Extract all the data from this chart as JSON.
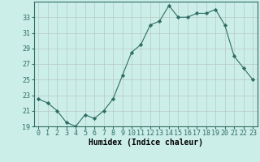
{
  "x": [
    0,
    1,
    2,
    3,
    4,
    5,
    6,
    7,
    8,
    9,
    10,
    11,
    12,
    13,
    14,
    15,
    16,
    17,
    18,
    19,
    20,
    21,
    22,
    23
  ],
  "y": [
    22.5,
    22.0,
    21.0,
    19.5,
    19.0,
    20.5,
    20.0,
    21.0,
    22.5,
    25.5,
    28.5,
    29.5,
    32.0,
    32.5,
    34.5,
    33.0,
    33.0,
    33.5,
    33.5,
    34.0,
    32.0,
    28.0,
    26.5,
    25.0
  ],
  "xlabel": "Humidex (Indice chaleur)",
  "ylim": [
    19,
    35
  ],
  "xlim": [
    -0.5,
    23.5
  ],
  "yticks": [
    19,
    21,
    23,
    25,
    27,
    29,
    31,
    33
  ],
  "xtick_labels": [
    "0",
    "1",
    "2",
    "3",
    "4",
    "5",
    "6",
    "7",
    "8",
    "9",
    "10",
    "11",
    "12",
    "13",
    "14",
    "15",
    "16",
    "17",
    "18",
    "19",
    "20",
    "21",
    "22",
    "23"
  ],
  "line_color": "#2e6e62",
  "marker_color": "#2e6e62",
  "bg_color": "#cceee8",
  "grid_color": "#b8c8c4",
  "font_size_tick": 6,
  "font_size_label": 7
}
